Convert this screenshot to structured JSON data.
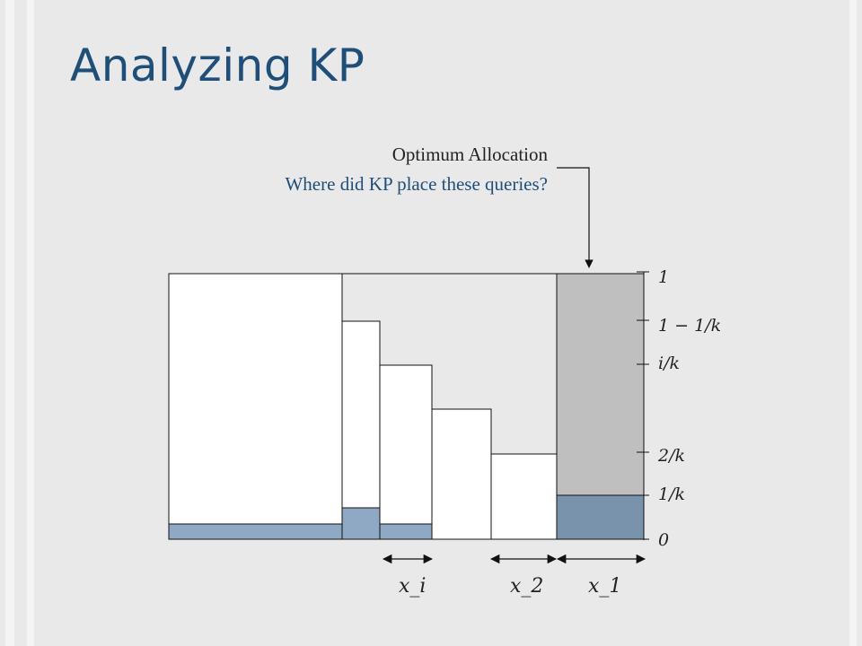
{
  "slide": {
    "title": "Analyzing KP",
    "annotation_primary": "Optimum Allocation",
    "annotation_secondary": "Where did KP place these queries?"
  },
  "diagram": {
    "y_ticks": [
      "1",
      "1 − 1/k",
      "i/k",
      "2/k",
      "1/k",
      "0"
    ],
    "width_labels": [
      "x_i",
      "x_2",
      "x_1"
    ],
    "colors": {
      "box_fill": "#ffffff",
      "optimum_fill": "#bfbfbf",
      "optimum_part": "#7a93ad",
      "placed_part": "#8fa8c4",
      "title": "#1f4e79"
    }
  }
}
